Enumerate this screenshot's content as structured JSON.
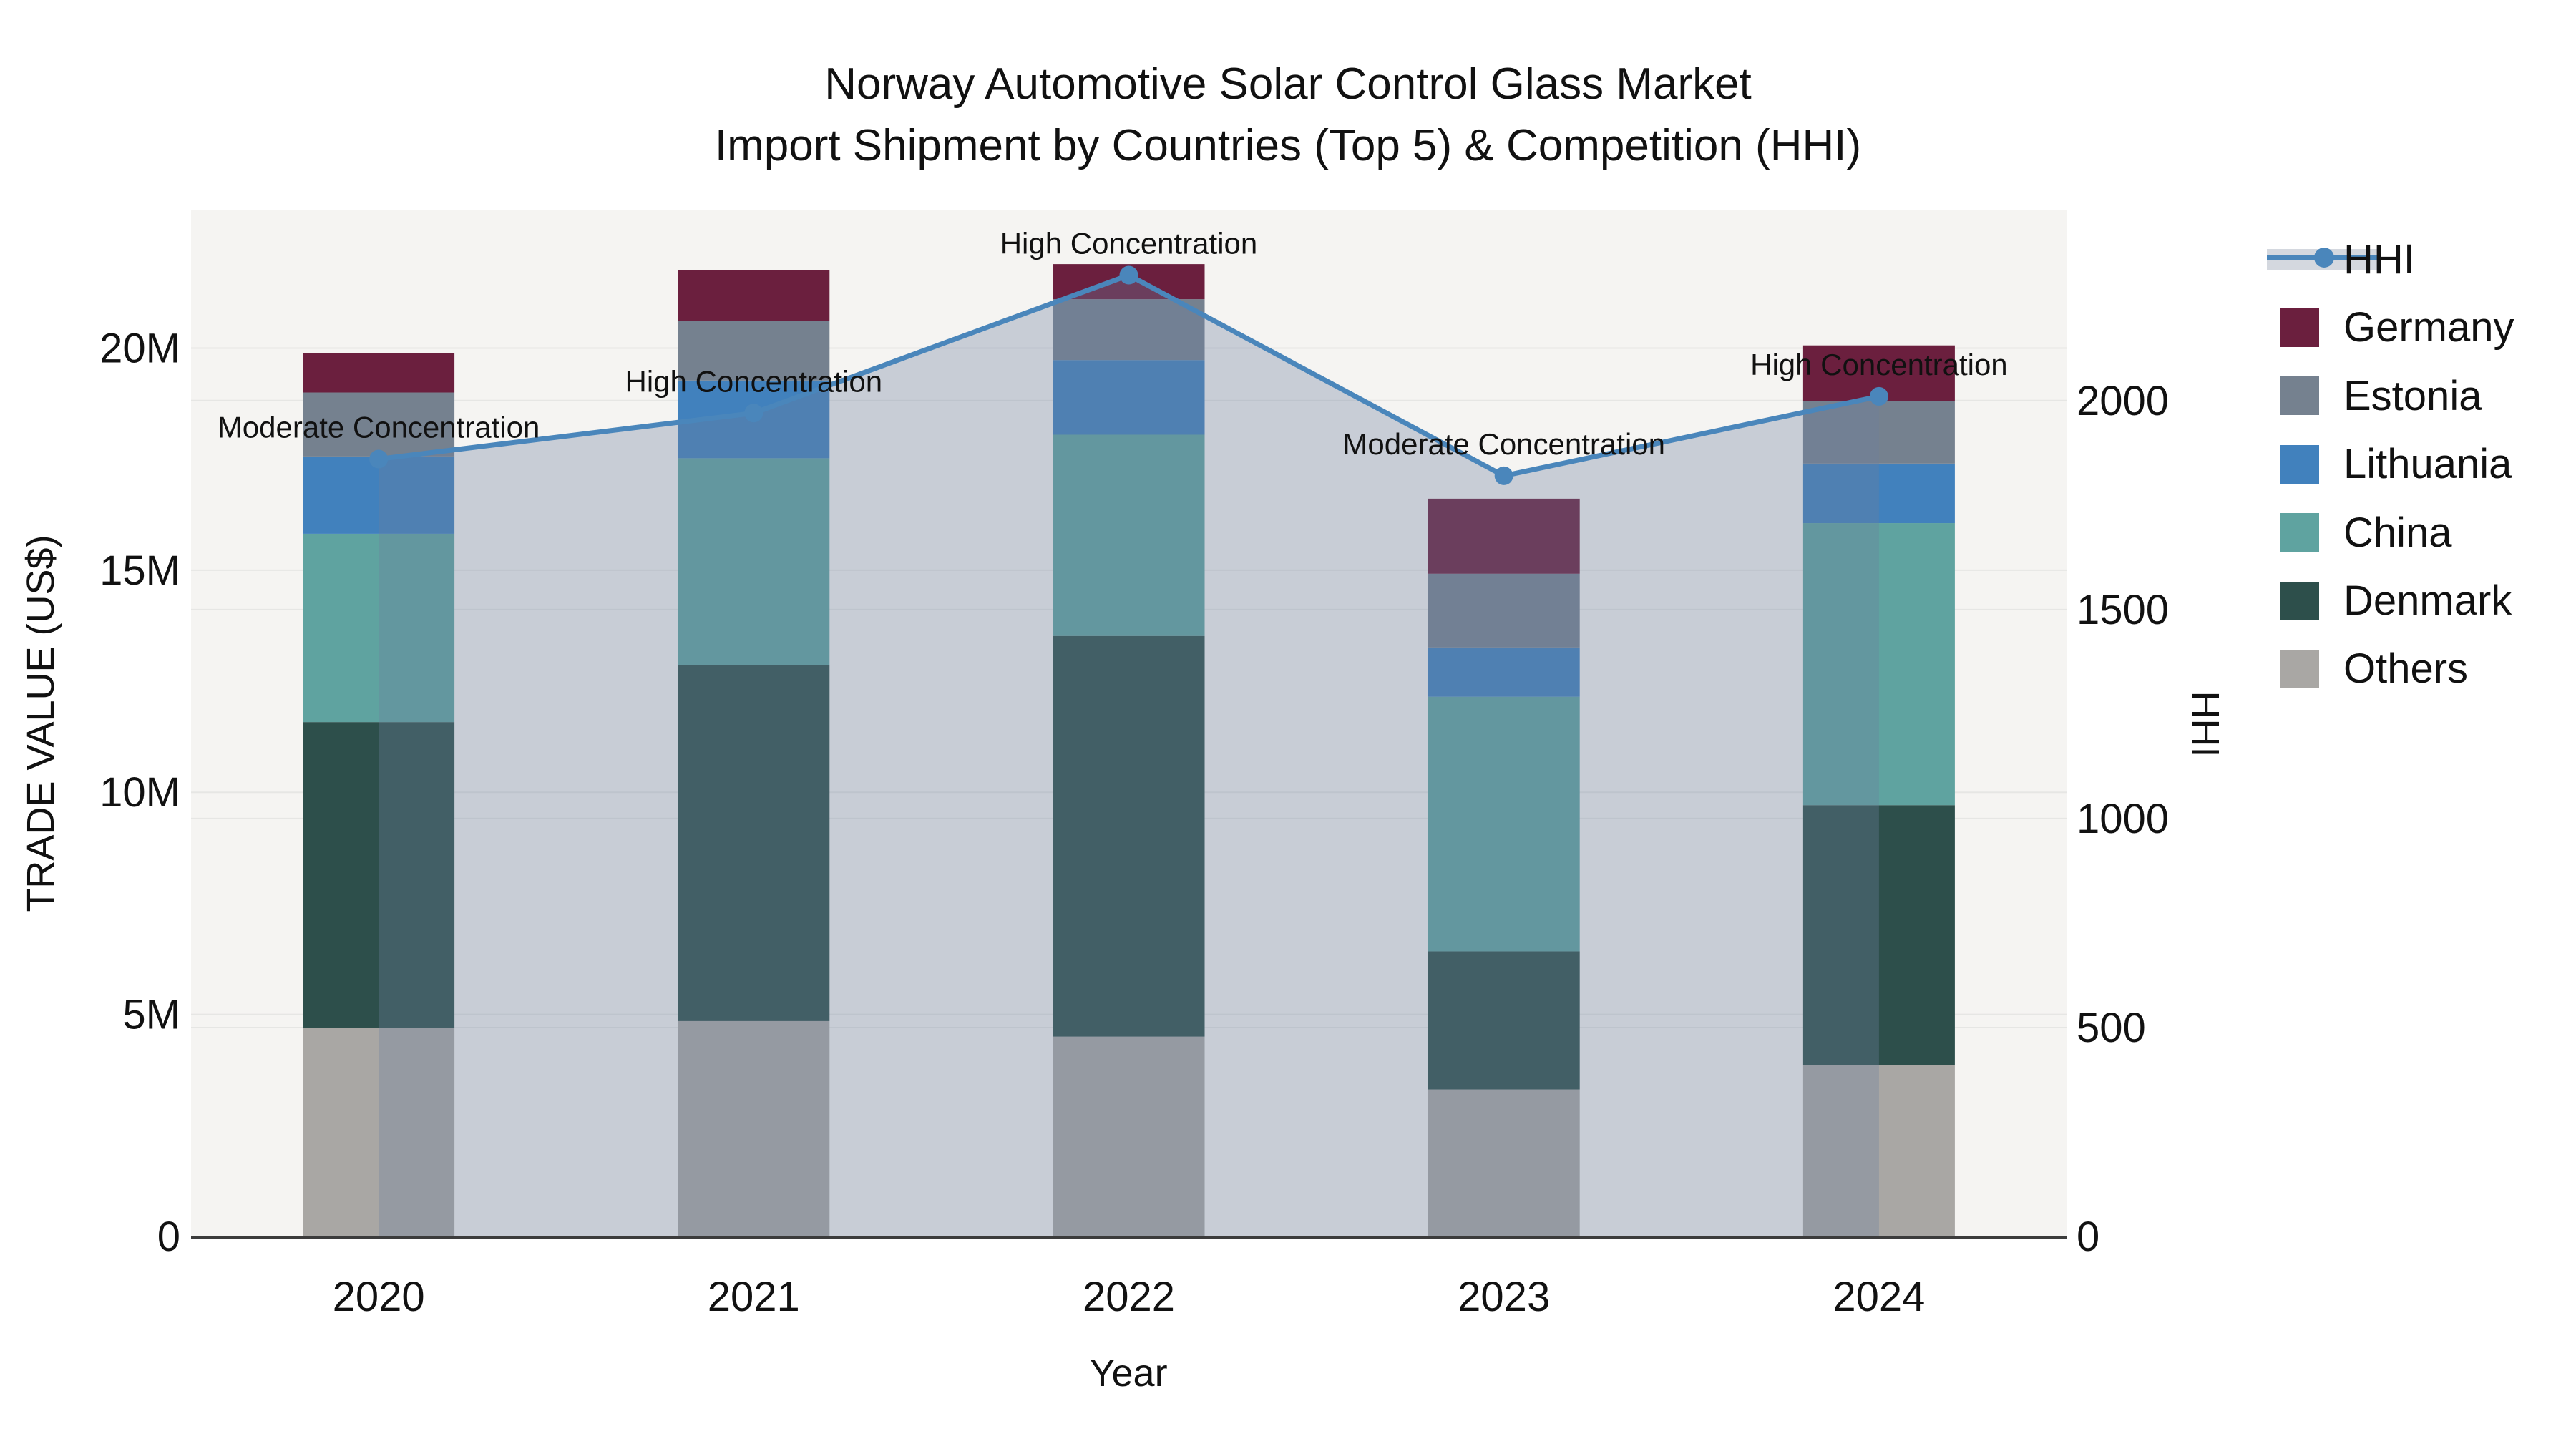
{
  "title": {
    "line1": "Norway Automotive Solar Control Glass Market",
    "line2": "Import Shipment by Countries (Top 5) & Competition (HHI)"
  },
  "axes": {
    "y_left_title": "TRADE VALUE (US$)",
    "y_right_title": "HHI",
    "x_title": "Year"
  },
  "chart_data": {
    "type": "bar+line",
    "title": "Norway Automotive Solar Control Glass Market — Import Shipment by Countries (Top 5) & Competition (HHI)",
    "categories": [
      "2020",
      "2021",
      "2022",
      "2023",
      "2024"
    ],
    "stack_order_note": "bar_series listed bottom-to-top of the stack; values in million US$",
    "bar_series": [
      {
        "name": "Others",
        "color": "#a9a7a4",
        "values": [
          4.69,
          4.85,
          4.5,
          3.31,
          3.85
        ]
      },
      {
        "name": "Denmark",
        "color": "#2d4f4b",
        "values": [
          6.89,
          8.02,
          9.02,
          3.11,
          5.86
        ]
      },
      {
        "name": "China",
        "color": "#5fa3a0",
        "values": [
          4.24,
          4.65,
          4.53,
          5.73,
          6.35
        ]
      },
      {
        "name": "Lithuania",
        "color": "#4181bd",
        "values": [
          1.74,
          1.75,
          1.68,
          1.11,
          1.34
        ]
      },
      {
        "name": "Estonia",
        "color": "#75818f",
        "values": [
          1.44,
          1.34,
          1.37,
          1.66,
          1.41
        ]
      },
      {
        "name": "Germany",
        "color": "#6b1f3e",
        "values": [
          0.89,
          1.15,
          0.79,
          1.69,
          1.25
        ]
      }
    ],
    "line_series": {
      "name": "HHI",
      "color": "#4a86bb",
      "fill_color": "rgba(110,128,158,0.33)",
      "values": [
        1860,
        1970,
        2300,
        1820,
        2010
      ]
    },
    "annotations": [
      "Moderate Concentration",
      "High Concentration",
      "High Concentration",
      "Moderate Concentration",
      "High Concentration"
    ],
    "y_left": {
      "ticks": [
        0,
        5,
        10,
        15,
        20
      ],
      "tick_labels": [
        "0",
        "5M",
        "10M",
        "15M",
        "20M"
      ],
      "lim": [
        0,
        23.1
      ]
    },
    "y_right": {
      "ticks": [
        0,
        500,
        1000,
        1500,
        2000
      ],
      "tick_labels": [
        "0",
        "500",
        "1000",
        "1500",
        "2000"
      ],
      "lim": [
        0,
        2455
      ]
    },
    "xlabel": "Year",
    "ylabel": "TRADE VALUE (US$)",
    "y2label": "HHI",
    "grid": true,
    "legend_position": "right",
    "legend": [
      {
        "label": "HHI",
        "type": "line",
        "color": "#4a86bb",
        "band_color": "#d4d8df"
      },
      {
        "label": "Germany",
        "type": "swatch",
        "color": "#6b1f3e"
      },
      {
        "label": "Estonia",
        "type": "swatch",
        "color": "#75818f"
      },
      {
        "label": "Lithuania",
        "type": "swatch",
        "color": "#4181bd"
      },
      {
        "label": "China",
        "type": "swatch",
        "color": "#5fa3a0"
      },
      {
        "label": "Denmark",
        "type": "swatch",
        "color": "#2d4f4b"
      },
      {
        "label": "Others",
        "type": "swatch",
        "color": "#a9a7a4"
      }
    ]
  },
  "style_colors": {
    "plot_bg": "#f5f4f2",
    "grid": "#e6e6e4",
    "axis_line": "#3c3c3c"
  }
}
